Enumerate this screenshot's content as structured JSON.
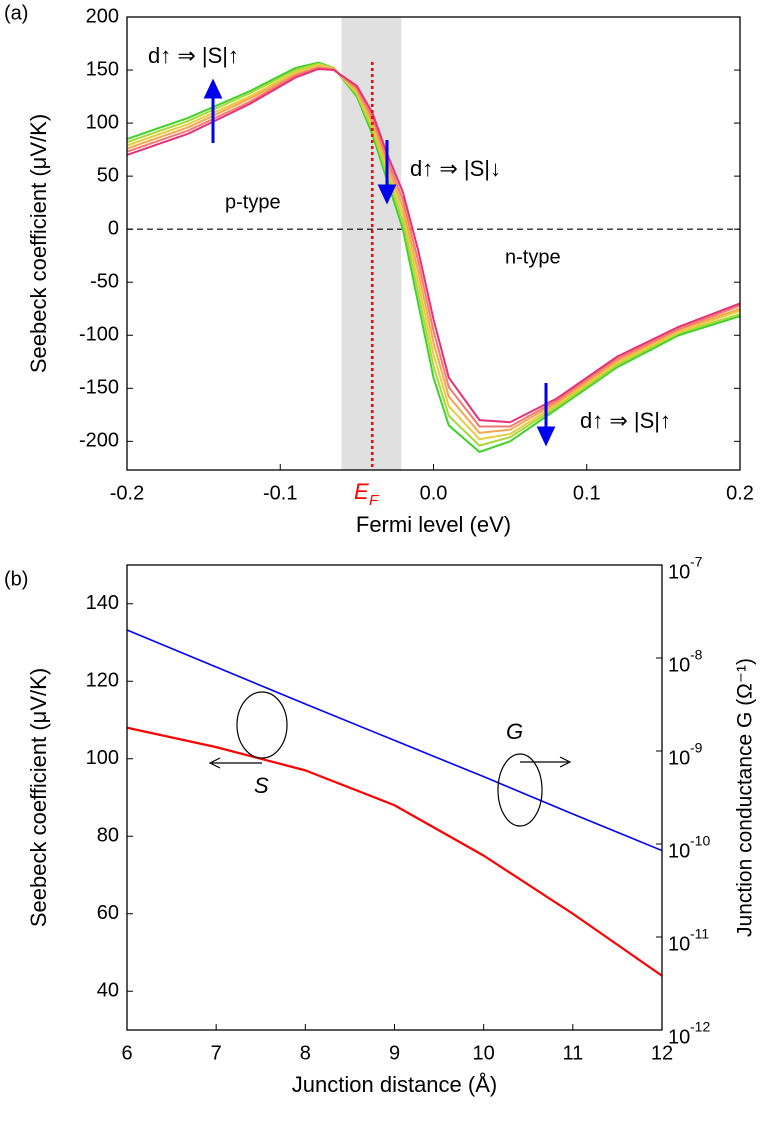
{
  "chart_data": [
    {
      "type": "line",
      "panel_label": "(a)",
      "xlabel": "Fermi level (eV)",
      "ylabel": "Seebeck coefficient (μV/K)",
      "x": [
        -0.2,
        -0.16,
        -0.12,
        -0.09,
        -0.075,
        -0.065,
        -0.05,
        -0.04,
        -0.03,
        -0.02,
        -0.01,
        0,
        0.01,
        0.03,
        0.05,
        0.08,
        0.12,
        0.16,
        0.2
      ],
      "xlim": [
        -0.2,
        0.2
      ],
      "ylim": [
        -227,
        200
      ],
      "xticks": [
        -0.2,
        -0.1,
        {
          "value": 0,
          "label": "0.0"
        },
        0.1,
        0.2
      ],
      "yticks": [
        200,
        150,
        100,
        50,
        0,
        -50,
        -100,
        -150,
        -200
      ],
      "series": [
        {
          "color": "#3fd22a",
          "values": [
            85,
            105,
            130,
            152,
            157,
            152,
            125,
            90,
            45,
            0,
            -70,
            -140,
            -185,
            -210,
            -200,
            -170,
            -130,
            -100,
            -82
          ]
        },
        {
          "color": "#a8d83a",
          "values": [
            82,
            102,
            128,
            150,
            156,
            152,
            127,
            94,
            50,
            7,
            -60,
            -129,
            -176,
            -204,
            -196,
            -168,
            -128,
            -98,
            -80
          ]
        },
        {
          "color": "#e8cc40",
          "values": [
            79,
            99,
            125,
            148,
            155,
            151,
            129,
            98,
            55,
            14,
            -50,
            -118,
            -167,
            -198,
            -193,
            -166,
            -126,
            -97,
            -77
          ]
        },
        {
          "color": "#f5a650",
          "values": [
            76,
            96,
            123,
            146,
            153,
            151,
            131,
            102,
            60,
            21,
            -40,
            -107,
            -158,
            -192,
            -189,
            -164,
            -124,
            -95,
            -75
          ]
        },
        {
          "color": "#f27a70",
          "values": [
            73,
            93,
            120,
            145,
            152,
            150,
            133,
            106,
            65,
            28,
            -30,
            -96,
            -149,
            -186,
            -186,
            -162,
            -122,
            -94,
            -72
          ]
        },
        {
          "color": "#e8307a",
          "values": [
            70,
            90,
            118,
            143,
            151,
            150,
            135,
            110,
            70,
            35,
            -20,
            -85,
            -140,
            -180,
            -182,
            -160,
            -120,
            -92,
            -70
          ]
        }
      ],
      "zero_line": 0,
      "shade": [
        -0.06,
        -0.021
      ],
      "fermi_level": -0.04,
      "fermi_label": "E",
      "fermi_label_sub": "F",
      "annotations": [
        "d↑ ⇒ |S|↑",
        "d↑ ⇒ |S|↓",
        "d↑ ⇒ |S|↑",
        "p-type",
        "n-type"
      ]
    },
    {
      "type": "line",
      "panel_label": "(b)",
      "xlabel": "Junction distance (Å)",
      "ylabel": "Seebeck coefficient (μV/K)",
      "y2label": "Junction conductance G (Ω⁻¹)",
      "x": [
        6,
        7,
        8,
        9,
        10,
        11,
        12
      ],
      "xlim": [
        6,
        12
      ],
      "ylim": [
        30,
        150
      ],
      "y2lim": [
        1e-12,
        1e-07
      ],
      "y2log": true,
      "xticks": [
        6,
        7,
        8,
        9,
        10,
        11,
        12
      ],
      "yticks": [
        40,
        60,
        80,
        100,
        120,
        140
      ],
      "y2ticks": [
        {
          "value": 1e-07,
          "label": "10",
          "sup": "-7"
        },
        {
          "value": 1e-08,
          "label": "10",
          "sup": "-8"
        },
        {
          "value": 1e-09,
          "label": "10",
          "sup": "-9"
        },
        {
          "value": 1e-10,
          "label": "10",
          "sup": "-10"
        },
        {
          "value": 1e-11,
          "label": "10",
          "sup": "-11"
        },
        {
          "value": 1e-12,
          "label": "10",
          "sup": "-12"
        }
      ],
      "series": [
        {
          "color": "#ff0000",
          "values": [
            108,
            103,
            97,
            88,
            75,
            60,
            44
          ]
        },
        {
          "color": "#0000ff",
          "axis": "y2",
          "values": [
            2e-08,
            8e-09,
            3.2e-09,
            1.3e-09,
            5.3e-10,
            2.1e-10,
            8.5e-11
          ]
        }
      ],
      "annotations": [
        "G",
        "S"
      ]
    }
  ]
}
